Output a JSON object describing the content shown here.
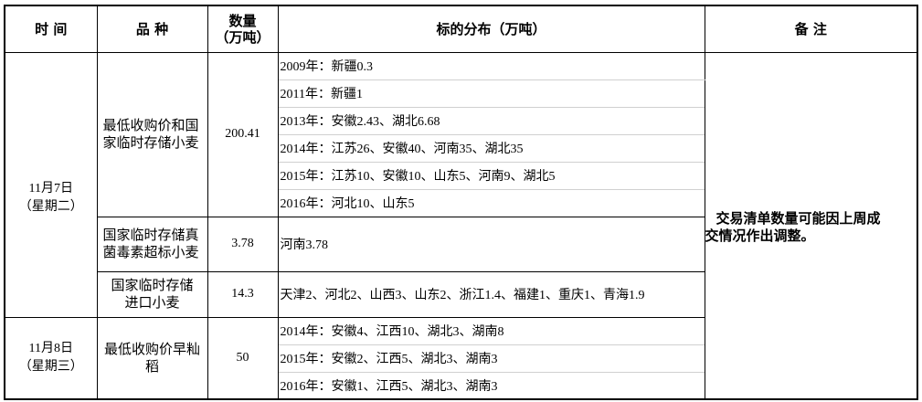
{
  "headers": {
    "time": "时 间",
    "variety": "品 种",
    "quantity": "数量\n（万吨）",
    "quantity_line1": "数量",
    "quantity_line2": "（万吨）",
    "distribution": "标的分布（万吨）",
    "remarks": "备 注"
  },
  "groups": [
    {
      "date": "11月7日",
      "weekday": "（星期二）",
      "items": [
        {
          "variety": "最低收购价和国家临时存储小麦",
          "quantity": "200.41",
          "distribution": [
            "2009年：新疆0.3",
            "2011年：新疆1",
            "2013年：安徽2.43、湖北6.68",
            "2014年：江苏26、安徽40、河南35、湖北35",
            "2015年：江苏10、安徽10、山东5、河南9、湖北5",
            "2016年：河北10、山东5"
          ]
        },
        {
          "variety": "国家临时存储真菌毒素超标小麦",
          "quantity": "3.78",
          "distribution": [
            "河南3.78"
          ]
        },
        {
          "variety": "国家临时存储进口小麦",
          "quantity": "14.3",
          "distribution": [
            "天津2、河北2、山西3、山东2、浙江1.4、福建1、重庆1、青海1.9"
          ]
        }
      ]
    },
    {
      "date": "11月8日",
      "weekday": "（星期三）",
      "items": [
        {
          "variety": "最低收购价早籼稻",
          "quantity": "50",
          "distribution": [
            "2014年：安徽4、江西10、湖北3、湖南8",
            "2015年：安徽2、江西5、湖北3、湖南3",
            "2016年：安徽1、江西5、湖北3、湖南3"
          ]
        }
      ]
    }
  ],
  "remarks": {
    "line1": "交易清单数量可能因上周成",
    "line2": "交情况作出调整。"
  }
}
